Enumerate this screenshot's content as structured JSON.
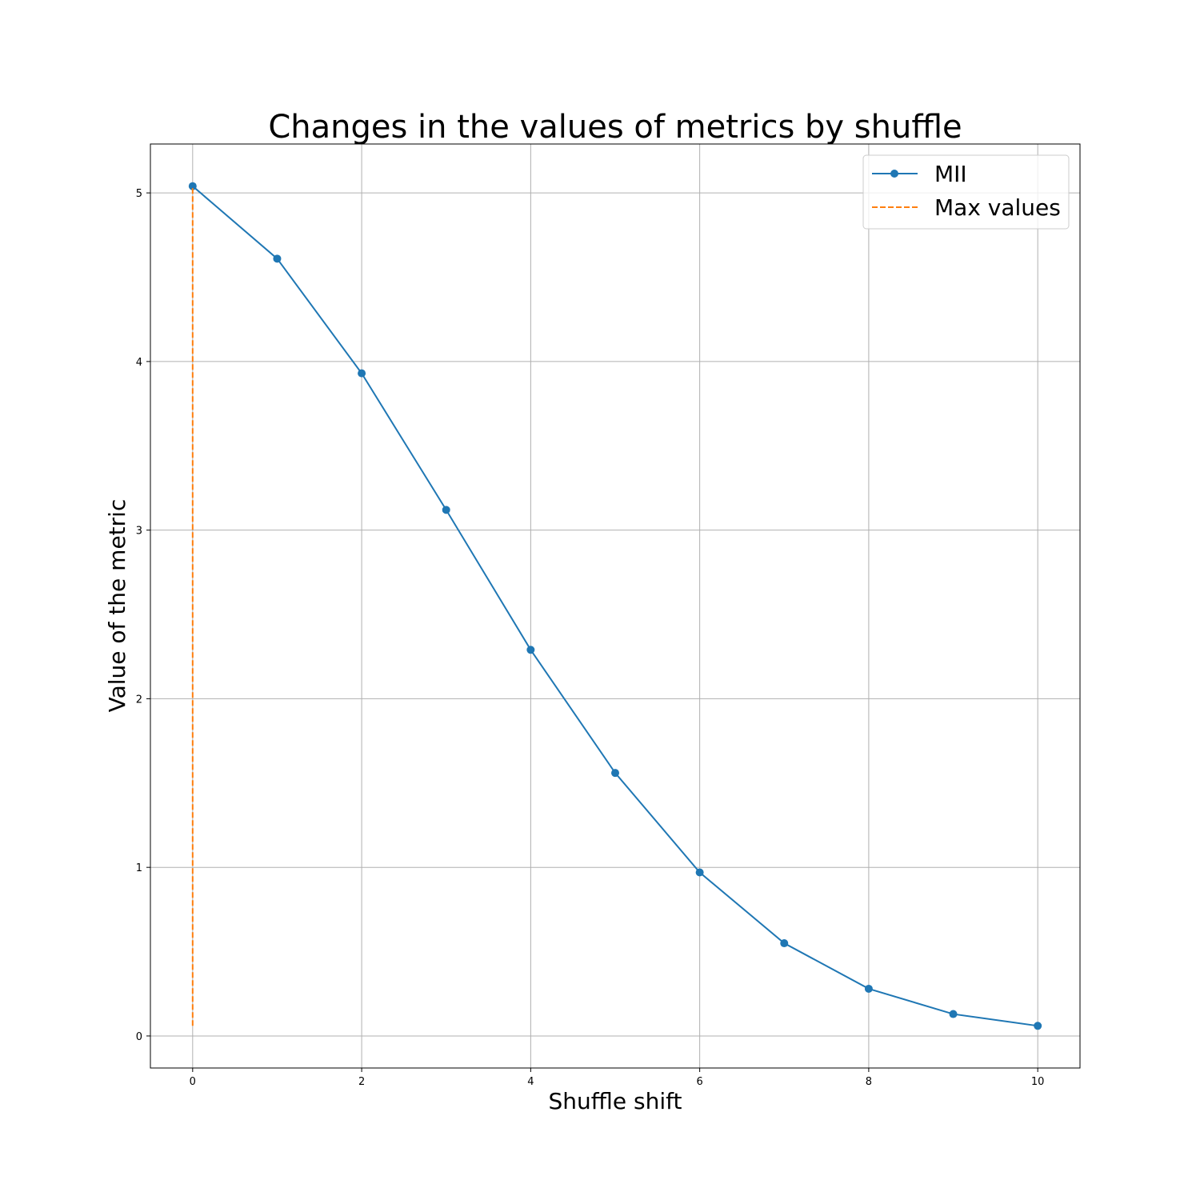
{
  "chart_data": {
    "type": "line",
    "title": "Changes in the values of metrics by shuffle",
    "xlabel": "Shuffle shift",
    "ylabel": "Value of the metric",
    "xlim": [
      -0.5,
      10.5
    ],
    "ylim": [
      -0.19,
      5.29
    ],
    "xticks": [
      0,
      2,
      4,
      6,
      8,
      10
    ],
    "yticks": [
      0,
      1,
      2,
      3,
      4,
      5
    ],
    "grid": true,
    "legend_position": "top-right",
    "series": [
      {
        "name": "MII",
        "color": "#1f77b4",
        "style": "solid",
        "marker": "circle",
        "x": [
          0,
          1,
          2,
          3,
          4,
          5,
          6,
          7,
          8,
          9,
          10
        ],
        "y": [
          5.04,
          4.61,
          3.93,
          3.12,
          2.29,
          1.56,
          0.97,
          0.55,
          0.28,
          0.13,
          0.06
        ]
      },
      {
        "name": "Max values",
        "color": "#ff7f0e",
        "style": "dashed",
        "x": [
          0,
          0
        ],
        "y": [
          0.06,
          5.04
        ]
      }
    ]
  }
}
